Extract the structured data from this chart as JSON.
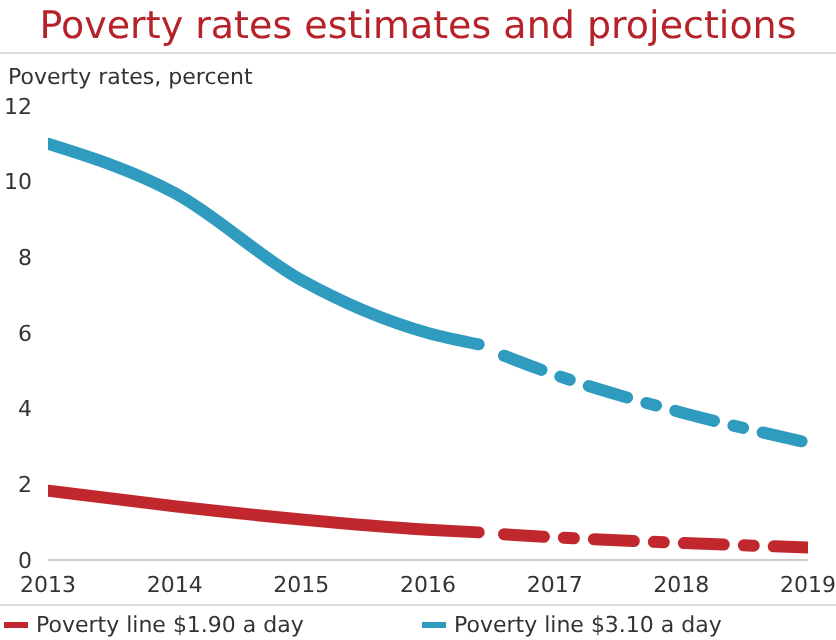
{
  "chart_data": {
    "type": "line",
    "title": "Poverty rates estimates and projections",
    "ylabel": "Poverty rates, percent",
    "xlim": [
      2013,
      2019
    ],
    "xticks": [
      2013,
      2014,
      2015,
      2016,
      2017,
      2018,
      2019
    ],
    "ylim": [
      0,
      12
    ],
    "yticks": [
      0,
      2,
      4,
      6,
      8,
      10,
      12
    ],
    "grid": false,
    "legend": "bottom",
    "marker": "none",
    "series": [
      {
        "name": "Poverty line $1.90 a day",
        "color": "#c0282d",
        "line_style": "solid",
        "x": [
          2013,
          2014,
          2015,
          2016,
          2016.4
        ],
        "values": [
          1.83,
          1.42,
          1.07,
          0.8,
          0.73
        ]
      },
      {
        "color": "#c0282d",
        "line_style": "dashed",
        "x": [
          2016.6,
          2017,
          2018,
          2019
        ],
        "values": [
          0.68,
          0.6,
          0.45,
          0.33
        ]
      },
      {
        "name": "Poverty line $3.10 a day",
        "color": "#2e9bbf",
        "line_style": "solid",
        "x": [
          2013,
          2014,
          2015,
          2016,
          2016.4
        ],
        "values": [
          11.0,
          9.7,
          7.4,
          6.0,
          5.7
        ]
      },
      {
        "color": "#2e9bbf",
        "line_style": "dashed",
        "x": [
          2016.6,
          2017,
          2018,
          2019
        ],
        "values": [
          5.4,
          4.9,
          3.9,
          3.1
        ]
      }
    ]
  }
}
